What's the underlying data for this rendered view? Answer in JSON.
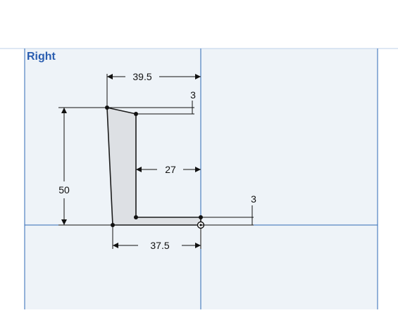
{
  "view": {
    "label": "Right"
  },
  "dimensions": {
    "top_width": "39.5",
    "top_slant": "3",
    "inner_width": "27",
    "height": "50",
    "base_thickness": "3",
    "base_width": "37.5"
  },
  "colors": {
    "view_label": "#2a5db0",
    "grid_line": "#2f68b5",
    "frame_line": "#bcd0ea",
    "plane_fill": "#eef3f8",
    "profile_fill": "#dde0e4",
    "profile_stroke": "#1a1a1a",
    "dimension_line": "#111111"
  },
  "icons": {
    "origin": "origin-marker-icon"
  }
}
